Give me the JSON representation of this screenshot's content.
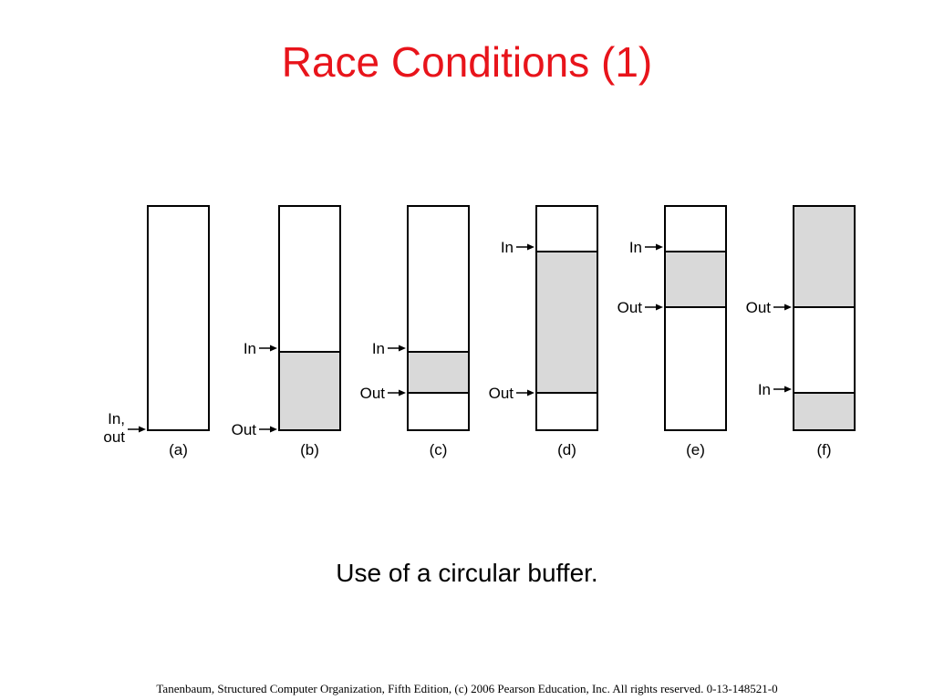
{
  "title": "Race Conditions (1)",
  "panels": [
    {
      "label": "(a)",
      "pointers": [
        {
          "lines": [
            "In,",
            "out"
          ]
        }
      ]
    },
    {
      "label": "(b)",
      "pointers": [
        {
          "lines": [
            "In"
          ]
        },
        {
          "lines": [
            "Out"
          ]
        }
      ]
    },
    {
      "label": "(c)",
      "pointers": [
        {
          "lines": [
            "In"
          ]
        },
        {
          "lines": [
            "Out"
          ]
        }
      ]
    },
    {
      "label": "(d)",
      "pointers": [
        {
          "lines": [
            "In"
          ]
        },
        {
          "lines": [
            "Out"
          ]
        }
      ]
    },
    {
      "label": "(e)",
      "pointers": [
        {
          "lines": [
            "In"
          ]
        },
        {
          "lines": [
            "Out"
          ]
        }
      ]
    },
    {
      "label": "(f)",
      "pointers": [
        {
          "lines": [
            "Out"
          ]
        },
        {
          "lines": [
            "In"
          ]
        }
      ]
    }
  ],
  "caption": "Use of a circular buffer.",
  "footer": "Tanenbaum, Structured Computer Organization, Fifth Edition, (c) 2006 Pearson Education, Inc. All rights reserved. 0-13-148521-0"
}
